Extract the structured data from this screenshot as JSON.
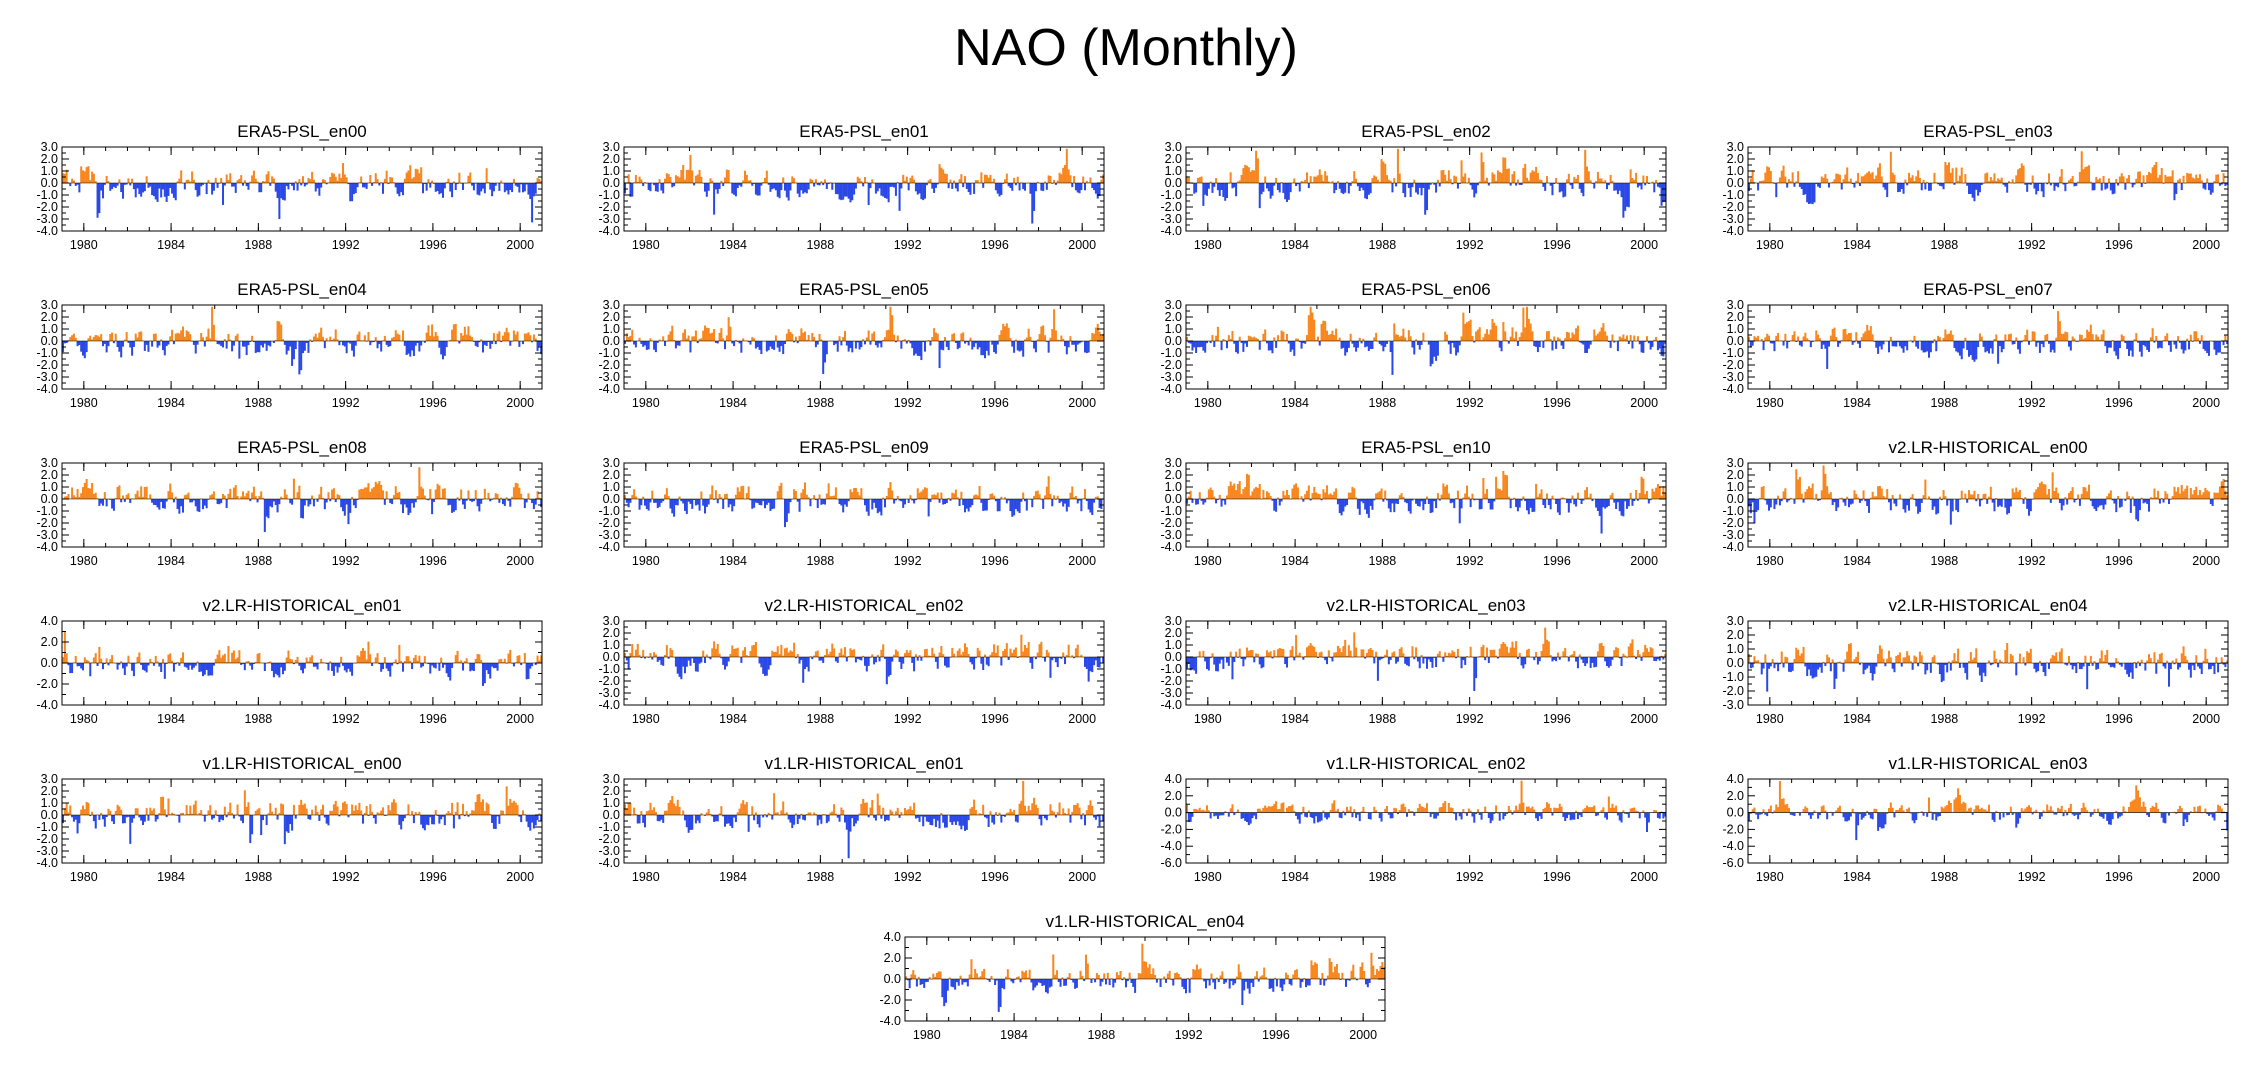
{
  "title": "NAO (Monthly)",
  "colors": {
    "positive": "#f7871e",
    "negative": "#2a49e6"
  },
  "chart_data": [
    {
      "type": "area",
      "title": "ERA5-PSL_en00",
      "x_range": [
        1979,
        2001
      ],
      "x_ticks": [
        "1980",
        "1984",
        "1988",
        "1992",
        "1996",
        "2000"
      ],
      "ylim": [
        -4,
        3
      ],
      "y_ticks": [
        "3.0",
        "2.0",
        "1.0",
        "0.0",
        "-1.0",
        "-2.0",
        "-3.0",
        "-4.0"
      ],
      "seed": 11
    },
    {
      "type": "area",
      "title": "ERA5-PSL_en01",
      "x_range": [
        1979,
        2001
      ],
      "x_ticks": [
        "1980",
        "1984",
        "1988",
        "1992",
        "1996",
        "2000"
      ],
      "ylim": [
        -4,
        3
      ],
      "y_ticks": [
        "3.0",
        "2.0",
        "1.0",
        "0.0",
        "-1.0",
        "-2.0",
        "-3.0",
        "-4.0"
      ],
      "seed": 11
    },
    {
      "type": "area",
      "title": "ERA5-PSL_en02",
      "x_range": [
        1979,
        2001
      ],
      "x_ticks": [
        "1980",
        "1984",
        "1988",
        "1992",
        "1996",
        "2000"
      ],
      "ylim": [
        -4,
        3
      ],
      "y_ticks": [
        "3.0",
        "2.0",
        "1.0",
        "0.0",
        "-1.0",
        "-2.0",
        "-3.0",
        "-4.0"
      ],
      "seed": 11
    },
    {
      "type": "area",
      "title": "ERA5-PSL_en03",
      "x_range": [
        1979,
        2001
      ],
      "x_ticks": [
        "1980",
        "1984",
        "1988",
        "1992",
        "1996",
        "2000"
      ],
      "ylim": [
        -4,
        3
      ],
      "y_ticks": [
        "3.0",
        "2.0",
        "1.0",
        "0.0",
        "-1.0",
        "-2.0",
        "-3.0",
        "-4.0"
      ],
      "seed": 11
    },
    {
      "type": "area",
      "title": "ERA5-PSL_en04",
      "x_range": [
        1979,
        2001
      ],
      "x_ticks": [
        "1980",
        "1984",
        "1988",
        "1992",
        "1996",
        "2000"
      ],
      "ylim": [
        -4,
        3
      ],
      "y_ticks": [
        "3.0",
        "2.0",
        "1.0",
        "0.0",
        "-1.0",
        "-2.0",
        "-3.0",
        "-4.0"
      ],
      "seed": 11
    },
    {
      "type": "area",
      "title": "ERA5-PSL_en05",
      "x_range": [
        1979,
        2001
      ],
      "x_ticks": [
        "1980",
        "1984",
        "1988",
        "1992",
        "1996",
        "2000"
      ],
      "ylim": [
        -4,
        3
      ],
      "y_ticks": [
        "3.0",
        "2.0",
        "1.0",
        "0.0",
        "-1.0",
        "-2.0",
        "-3.0",
        "-4.0"
      ],
      "seed": 11
    },
    {
      "type": "area",
      "title": "ERA5-PSL_en06",
      "x_range": [
        1979,
        2001
      ],
      "x_ticks": [
        "1980",
        "1984",
        "1988",
        "1992",
        "1996",
        "2000"
      ],
      "ylim": [
        -4,
        3
      ],
      "y_ticks": [
        "3.0",
        "2.0",
        "1.0",
        "0.0",
        "-1.0",
        "-2.0",
        "-3.0",
        "-4.0"
      ],
      "seed": 11
    },
    {
      "type": "area",
      "title": "ERA5-PSL_en07",
      "x_range": [
        1979,
        2001
      ],
      "x_ticks": [
        "1980",
        "1984",
        "1988",
        "1992",
        "1996",
        "2000"
      ],
      "ylim": [
        -4,
        3
      ],
      "y_ticks": [
        "3.0",
        "2.0",
        "1.0",
        "0.0",
        "-1.0",
        "-2.0",
        "-3.0",
        "-4.0"
      ],
      "seed": 11
    },
    {
      "type": "area",
      "title": "ERA5-PSL_en08",
      "x_range": [
        1979,
        2001
      ],
      "x_ticks": [
        "1980",
        "1984",
        "1988",
        "1992",
        "1996",
        "2000"
      ],
      "ylim": [
        -4,
        3
      ],
      "y_ticks": [
        "3.0",
        "2.0",
        "1.0",
        "0.0",
        "-1.0",
        "-2.0",
        "-3.0",
        "-4.0"
      ],
      "seed": 11
    },
    {
      "type": "area",
      "title": "ERA5-PSL_en09",
      "x_range": [
        1979,
        2001
      ],
      "x_ticks": [
        "1980",
        "1984",
        "1988",
        "1992",
        "1996",
        "2000"
      ],
      "ylim": [
        -4,
        3
      ],
      "y_ticks": [
        "3.0",
        "2.0",
        "1.0",
        "0.0",
        "-1.0",
        "-2.0",
        "-3.0",
        "-4.0"
      ],
      "seed": 11
    },
    {
      "type": "area",
      "title": "ERA5-PSL_en10",
      "x_range": [
        1979,
        2001
      ],
      "x_ticks": [
        "1980",
        "1984",
        "1988",
        "1992",
        "1996",
        "2000"
      ],
      "ylim": [
        -4,
        3
      ],
      "y_ticks": [
        "3.0",
        "2.0",
        "1.0",
        "0.0",
        "-1.0",
        "-2.0",
        "-3.0",
        "-4.0"
      ],
      "seed": 11
    },
    {
      "type": "area",
      "title": "v2.LR-HISTORICAL_en00",
      "x_range": [
        1979,
        2001
      ],
      "x_ticks": [
        "1980",
        "1984",
        "1988",
        "1992",
        "1996",
        "2000"
      ],
      "ylim": [
        -4,
        3
      ],
      "y_ticks": [
        "3.0",
        "2.0",
        "1.0",
        "0.0",
        "-1.0",
        "-2.0",
        "-3.0",
        "-4.0"
      ],
      "seed": 23
    },
    {
      "type": "area",
      "title": "v2.LR-HISTORICAL_en01",
      "x_range": [
        1979,
        2001
      ],
      "x_ticks": [
        "1980",
        "1984",
        "1988",
        "1992",
        "1996",
        "2000"
      ],
      "ylim": [
        -4,
        4
      ],
      "y_ticks": [
        "4.0",
        "2.0",
        "0.0",
        "-2.0",
        "-4.0"
      ],
      "seed": 37
    },
    {
      "type": "area",
      "title": "v2.LR-HISTORICAL_en02",
      "x_range": [
        1979,
        2001
      ],
      "x_ticks": [
        "1980",
        "1984",
        "1988",
        "1992",
        "1996",
        "2000"
      ],
      "ylim": [
        -4,
        3
      ],
      "y_ticks": [
        "3.0",
        "2.0",
        "1.0",
        "0.0",
        "-1.0",
        "-2.0",
        "-3.0",
        "-4.0"
      ],
      "seed": 41
    },
    {
      "type": "area",
      "title": "v2.LR-HISTORICAL_en03",
      "x_range": [
        1979,
        2001
      ],
      "x_ticks": [
        "1980",
        "1984",
        "1988",
        "1992",
        "1996",
        "2000"
      ],
      "ylim": [
        -4,
        3
      ],
      "y_ticks": [
        "3.0",
        "2.0",
        "1.0",
        "0.0",
        "-1.0",
        "-2.0",
        "-3.0",
        "-4.0"
      ],
      "seed": 53
    },
    {
      "type": "area",
      "title": "v2.LR-HISTORICAL_en04",
      "x_range": [
        1979,
        2001
      ],
      "x_ticks": [
        "1980",
        "1984",
        "1988",
        "1992",
        "1996",
        "2000"
      ],
      "ylim": [
        -3,
        3
      ],
      "y_ticks": [
        "3.0",
        "2.0",
        "1.0",
        "0.0",
        "-1.0",
        "-2.0",
        "-3.0"
      ],
      "seed": 61
    },
    {
      "type": "area",
      "title": "v1.LR-HISTORICAL_en00",
      "x_range": [
        1979,
        2001
      ],
      "x_ticks": [
        "1980",
        "1984",
        "1988",
        "1992",
        "1996",
        "2000"
      ],
      "ylim": [
        -4,
        3
      ],
      "y_ticks": [
        "3.0",
        "2.0",
        "1.0",
        "0.0",
        "-1.0",
        "-2.0",
        "-3.0",
        "-4.0"
      ],
      "seed": 71
    },
    {
      "type": "area",
      "title": "v1.LR-HISTORICAL_en01",
      "x_range": [
        1979,
        2001
      ],
      "x_ticks": [
        "1980",
        "1984",
        "1988",
        "1992",
        "1996",
        "2000"
      ],
      "ylim": [
        -4,
        3
      ],
      "y_ticks": [
        "3.0",
        "2.0",
        "1.0",
        "0.0",
        "-1.0",
        "-2.0",
        "-3.0",
        "-4.0"
      ],
      "seed": 83
    },
    {
      "type": "area",
      "title": "v1.LR-HISTORICAL_en02",
      "x_range": [
        1979,
        2001
      ],
      "x_ticks": [
        "1980",
        "1984",
        "1988",
        "1992",
        "1996",
        "2000"
      ],
      "ylim": [
        -6,
        4
      ],
      "y_ticks": [
        "4.0",
        "2.0",
        "0.0",
        "-2.0",
        "-4.0",
        "-6.0"
      ],
      "seed": 97
    },
    {
      "type": "area",
      "title": "v1.LR-HISTORICAL_en03",
      "x_range": [
        1979,
        2001
      ],
      "x_ticks": [
        "1980",
        "1984",
        "1988",
        "1992",
        "1996",
        "2000"
      ],
      "ylim": [
        -6,
        4
      ],
      "y_ticks": [
        "4.0",
        "2.0",
        "0.0",
        "-2.0",
        "-4.0",
        "-6.0"
      ],
      "seed": 101
    },
    {
      "type": "area",
      "title": "v1.LR-HISTORICAL_en04",
      "x_range": [
        1979,
        2001
      ],
      "x_ticks": [
        "1980",
        "1984",
        "1988",
        "1992",
        "1996",
        "2000"
      ],
      "ylim": [
        -4,
        4
      ],
      "y_ticks": [
        "4.0",
        "2.0",
        "0.0",
        "-2.0",
        "-4.0"
      ],
      "seed": 113
    }
  ]
}
